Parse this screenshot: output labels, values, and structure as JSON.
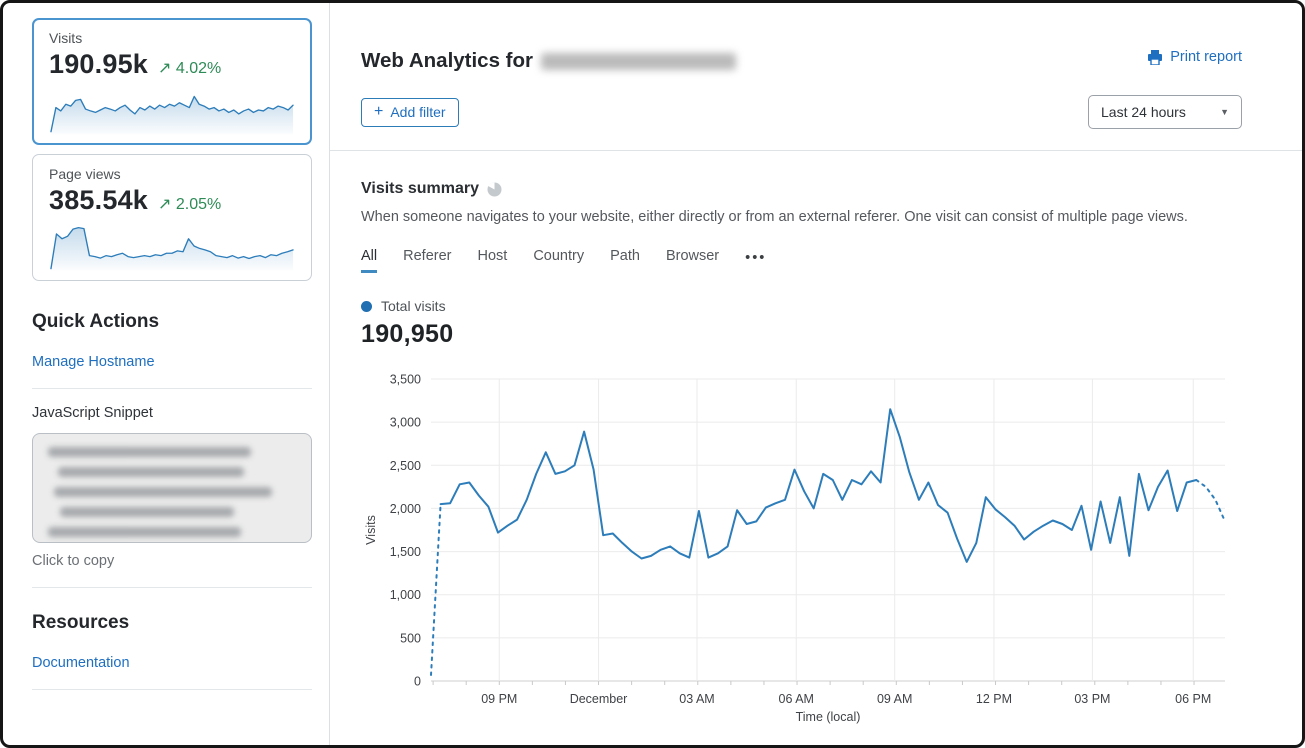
{
  "icons": {
    "plus": "+",
    "caret_down": "▼",
    "trend_up": "↗",
    "more_dots": "•••",
    "legend_dot": "●"
  },
  "colors": {
    "link_blue": "#1f6fc0",
    "chart_blue": "#2d7dba",
    "green": "#2e8b57",
    "selected_card_border": "#4a94d0",
    "grid": "#ebebeb",
    "axis": "#cfcfcf"
  },
  "sidebar": {
    "metric_cards": [
      {
        "label": "Visits",
        "value": "190.95k",
        "delta": "4.02%",
        "trend": "up",
        "selected": true,
        "sparkline": [
          5,
          55,
          48,
          62,
          58,
          70,
          72,
          52,
          48,
          45,
          50,
          55,
          52,
          48,
          55,
          60,
          50,
          42,
          55,
          50,
          58,
          52,
          60,
          55,
          62,
          58,
          65,
          60,
          55,
          78,
          62,
          58,
          52,
          55,
          48,
          52,
          45,
          50,
          42,
          48,
          52,
          45,
          50,
          48,
          55,
          52,
          58,
          55,
          50,
          60
        ]
      },
      {
        "label": "Page views",
        "value": "385.54k",
        "delta": "2.05%",
        "trend": "up",
        "selected": false,
        "sparkline": [
          3,
          75,
          65,
          70,
          85,
          88,
          86,
          30,
          28,
          25,
          30,
          28,
          32,
          35,
          28,
          26,
          28,
          30,
          28,
          32,
          30,
          35,
          35,
          40,
          38,
          65,
          50,
          45,
          42,
          38,
          30,
          28,
          26,
          30,
          25,
          28,
          24,
          28,
          30,
          26,
          32,
          30,
          35,
          38,
          42
        ]
      }
    ],
    "quick_actions": {
      "title": "Quick Actions",
      "links": [
        {
          "label": "Manage Hostname"
        }
      ],
      "snippet_label": "JavaScript Snippet",
      "snippet_hint": "Click to copy"
    },
    "resources": {
      "title": "Resources",
      "links": [
        {
          "label": "Documentation"
        }
      ]
    }
  },
  "header": {
    "title": "Web Analytics for",
    "print_label": "Print report",
    "add_filter_label": "Add filter",
    "time_range": "Last 24 hours"
  },
  "summary": {
    "title": "Visits summary",
    "description": "When someone navigates to your website, either directly or from an external referer. One visit can consist of multiple page views.",
    "tabs": [
      "All",
      "Referer",
      "Host",
      "Country",
      "Path",
      "Browser"
    ],
    "active_tab": "All",
    "legend_label": "Total visits",
    "total_value": "190,950"
  },
  "chart_data": {
    "type": "line",
    "title": "Visits summary",
    "xlabel": "Time (local)",
    "ylabel": "Visits",
    "ylim": [
      0,
      3500
    ],
    "grid": true,
    "legend_position": "top-left",
    "line_color": "#2d7dba",
    "y_ticks": [
      "0",
      "500",
      "1,000",
      "1,500",
      "2,000",
      "2,500",
      "3,000",
      "3,500"
    ],
    "x_ticks": [
      {
        "label": "09 PM",
        "f": 0.086
      },
      {
        "label": "December",
        "f": 0.211
      },
      {
        "label": "03 AM",
        "f": 0.335
      },
      {
        "label": "06 AM",
        "f": 0.46
      },
      {
        "label": "09 AM",
        "f": 0.584
      },
      {
        "label": "12 PM",
        "f": 0.709
      },
      {
        "label": "03 PM",
        "f": 0.833
      },
      {
        "label": "06 PM",
        "f": 0.96
      }
    ],
    "series": [
      {
        "name": "Total visits",
        "dashed_head_end_index": 1,
        "dashed_tail_start_index": 80,
        "values": [
          70,
          2050,
          2060,
          2280,
          2300,
          2150,
          2020,
          1720,
          1800,
          1870,
          2100,
          2400,
          2650,
          2400,
          2430,
          2500,
          2890,
          2450,
          1690,
          1710,
          1600,
          1500,
          1420,
          1450,
          1520,
          1560,
          1480,
          1430,
          1970,
          1430,
          1480,
          1560,
          1980,
          1820,
          1850,
          2010,
          2060,
          2100,
          2450,
          2200,
          2000,
          2400,
          2330,
          2100,
          2330,
          2280,
          2430,
          2300,
          3150,
          2830,
          2420,
          2100,
          2300,
          2040,
          1950,
          1650,
          1380,
          1600,
          2130,
          1990,
          1900,
          1800,
          1640,
          1730,
          1800,
          1860,
          1820,
          1750,
          2030,
          1520,
          2080,
          1600,
          2130,
          1450,
          2400,
          1980,
          2250,
          2440,
          1970,
          2300,
          2330,
          2250,
          2100,
          1850
        ]
      }
    ]
  }
}
